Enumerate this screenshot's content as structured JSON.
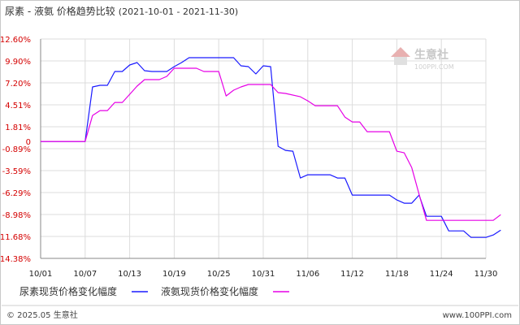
{
  "chart_data": {
    "type": "line",
    "title": "尿素 - 液氨 价格趋势比较",
    "date_range": "(2021-10-01 - 2021-11-30)",
    "y_ticks": [
      "12.60%",
      "9.90%",
      "7.20%",
      "4.51%",
      "1.81%",
      "0",
      "-0.89%",
      "-3.59%",
      "-6.29%",
      "-8.98%",
      "-11.68%",
      "-14.38%"
    ],
    "y_tick_values": [
      12.6,
      9.9,
      7.2,
      4.51,
      1.81,
      0,
      -0.89,
      -3.59,
      -6.29,
      -8.98,
      -11.68,
      -14.38
    ],
    "ylim": [
      -14.38,
      12.6
    ],
    "x_ticks": [
      "10/01",
      "10/07",
      "10/13",
      "10/19",
      "10/25",
      "10/31",
      "11/06",
      "11/12",
      "11/18",
      "11/24",
      "11/30"
    ],
    "x_tick_dates": [
      "2021-10-01",
      "2021-10-07",
      "2021-10-13",
      "2021-10-19",
      "2021-10-25",
      "2021-10-31",
      "2021-11-06",
      "2021-11-12",
      "2021-11-18",
      "2021-11-24",
      "2021-11-30"
    ],
    "xlim": [
      "2021-10-01",
      "2021-11-30"
    ],
    "grid": true,
    "legend_position": "bottom",
    "series": [
      {
        "name": "尿素现货价格变化幅度",
        "color": "#1a1aff",
        "points": [
          [
            "2021-10-01",
            0
          ],
          [
            "2021-10-07",
            0
          ],
          [
            "2021-10-08",
            6.7
          ],
          [
            "2021-10-09",
            6.9
          ],
          [
            "2021-10-10",
            6.9
          ],
          [
            "2021-10-11",
            8.6
          ],
          [
            "2021-10-12",
            8.6
          ],
          [
            "2021-10-13",
            9.4
          ],
          [
            "2021-10-14",
            9.7
          ],
          [
            "2021-10-15",
            8.7
          ],
          [
            "2021-10-16",
            8.6
          ],
          [
            "2021-10-17",
            8.6
          ],
          [
            "2021-10-18",
            8.6
          ],
          [
            "2021-10-19",
            9.2
          ],
          [
            "2021-10-20",
            9.7
          ],
          [
            "2021-10-21",
            10.3
          ],
          [
            "2021-10-27",
            10.3
          ],
          [
            "2021-10-28",
            9.3
          ],
          [
            "2021-10-29",
            9.2
          ],
          [
            "2021-10-30",
            8.3
          ],
          [
            "2021-10-31",
            9.3
          ],
          [
            "2021-11-01",
            9.2
          ],
          [
            "2021-11-02",
            -0.6
          ],
          [
            "2021-11-03",
            -1.1
          ],
          [
            "2021-11-04",
            -1.2
          ],
          [
            "2021-11-05",
            -4.5
          ],
          [
            "2021-11-06",
            -4.1
          ],
          [
            "2021-11-09",
            -4.1
          ],
          [
            "2021-11-10",
            -4.5
          ],
          [
            "2021-11-11",
            -4.5
          ],
          [
            "2021-11-12",
            -6.6
          ],
          [
            "2021-11-17",
            -6.6
          ],
          [
            "2021-11-18",
            -7.2
          ],
          [
            "2021-11-19",
            -7.6
          ],
          [
            "2021-11-20",
            -7.6
          ],
          [
            "2021-11-21",
            -6.6
          ],
          [
            "2021-11-22",
            -9.2
          ],
          [
            "2021-11-24",
            -9.2
          ],
          [
            "2021-11-25",
            -11.0
          ],
          [
            "2021-11-27",
            -11.0
          ],
          [
            "2021-11-28",
            -11.8
          ],
          [
            "2021-11-30",
            -11.8
          ],
          [
            "2021-12-01",
            -11.5
          ],
          [
            "2021-12-02",
            -10.9
          ]
        ]
      },
      {
        "name": "液氨现货价格变化幅度",
        "color": "#e600e6",
        "points": [
          [
            "2021-10-01",
            0
          ],
          [
            "2021-10-07",
            0
          ],
          [
            "2021-10-08",
            3.2
          ],
          [
            "2021-10-09",
            3.8
          ],
          [
            "2021-10-10",
            3.8
          ],
          [
            "2021-10-11",
            4.8
          ],
          [
            "2021-10-12",
            4.8
          ],
          [
            "2021-10-13",
            5.8
          ],
          [
            "2021-10-14",
            6.8
          ],
          [
            "2021-10-15",
            7.6
          ],
          [
            "2021-10-16",
            7.6
          ],
          [
            "2021-10-17",
            7.6
          ],
          [
            "2021-10-18",
            8.0
          ],
          [
            "2021-10-19",
            9.0
          ],
          [
            "2021-10-20",
            9.0
          ],
          [
            "2021-10-21",
            9.0
          ],
          [
            "2021-10-22",
            9.0
          ],
          [
            "2021-10-23",
            8.6
          ],
          [
            "2021-10-24",
            8.6
          ],
          [
            "2021-10-25",
            8.6
          ],
          [
            "2021-10-26",
            5.6
          ],
          [
            "2021-10-27",
            6.3
          ],
          [
            "2021-10-28",
            6.7
          ],
          [
            "2021-10-29",
            7.0
          ],
          [
            "2021-10-30",
            7.0
          ],
          [
            "2021-11-01",
            7.0
          ],
          [
            "2021-11-02",
            6.0
          ],
          [
            "2021-11-03",
            5.9
          ],
          [
            "2021-11-05",
            5.5
          ],
          [
            "2021-11-06",
            5.0
          ],
          [
            "2021-11-07",
            4.4
          ],
          [
            "2021-11-10",
            4.4
          ],
          [
            "2021-11-11",
            3.0
          ],
          [
            "2021-11-12",
            2.4
          ],
          [
            "2021-11-13",
            2.4
          ],
          [
            "2021-11-14",
            1.2
          ],
          [
            "2021-11-17",
            1.2
          ],
          [
            "2021-11-18",
            -1.2
          ],
          [
            "2021-11-19",
            -1.4
          ],
          [
            "2021-11-20",
            -3.2
          ],
          [
            "2021-11-21",
            -6.5
          ],
          [
            "2021-11-22",
            -9.7
          ],
          [
            "2021-11-30",
            -9.7
          ],
          [
            "2021-12-01",
            -9.7
          ],
          [
            "2021-12-02",
            -9.0
          ]
        ]
      }
    ]
  },
  "watermark": {
    "name": "生意社",
    "domain": "100PPI.COM"
  },
  "footer": {
    "left": "© 2025.05 生意社",
    "right": "www.100PPI.com"
  }
}
